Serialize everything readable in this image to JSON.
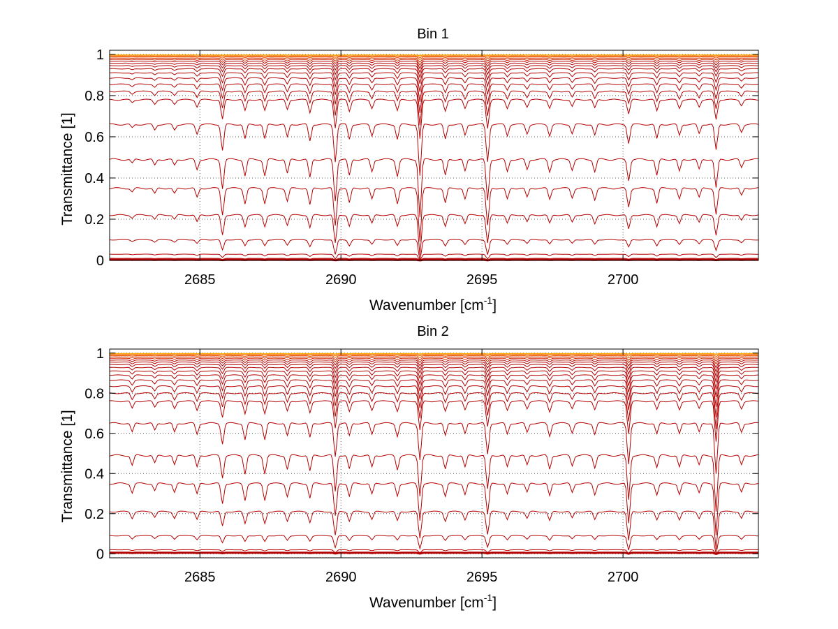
{
  "chart_data": [
    {
      "type": "line",
      "title": "Bin 1",
      "xlabel": "Wavenumber [cm",
      "xlabel_sup": "-1",
      "xlabel_end": "]",
      "ylabel": "Transmittance [1]",
      "xlim": [
        2681.8,
        2704.8
      ],
      "ylim": [
        0,
        1.02
      ],
      "grid": true,
      "xticks": [
        2685,
        2690,
        2695,
        2700
      ],
      "yticks": [
        0,
        0.2,
        0.4,
        0.6,
        0.8,
        1
      ],
      "ytick_labels": [
        "0",
        "0.2",
        "0.4",
        "0.6",
        "0.8",
        "1"
      ],
      "series_baselines": [
        0.003,
        0.01,
        0.03,
        0.1,
        0.22,
        0.35,
        0.49,
        0.66,
        0.78,
        0.82,
        0.855,
        0.885,
        0.91,
        0.93,
        0.945,
        0.957,
        0.967,
        0.975,
        0.982,
        0.988,
        0.992,
        0.996,
        0.998
      ],
      "absorption_lines": [
        {
          "x": 2682.6,
          "strength": 0.02
        },
        {
          "x": 2683.4,
          "strength": 0.03
        },
        {
          "x": 2684.1,
          "strength": 0.03
        },
        {
          "x": 2684.9,
          "strength": 0.05
        },
        {
          "x": 2685.8,
          "strength": 0.14
        },
        {
          "x": 2686.6,
          "strength": 0.08
        },
        {
          "x": 2687.3,
          "strength": 0.08
        },
        {
          "x": 2688.1,
          "strength": 0.07
        },
        {
          "x": 2688.9,
          "strength": 0.09
        },
        {
          "x": 2689.8,
          "strength": 0.2
        },
        {
          "x": 2690.3,
          "strength": 0.08
        },
        {
          "x": 2691.1,
          "strength": 0.06
        },
        {
          "x": 2692.0,
          "strength": 0.08
        },
        {
          "x": 2692.8,
          "strength": 0.28
        },
        {
          "x": 2693.7,
          "strength": 0.08
        },
        {
          "x": 2694.4,
          "strength": 0.06
        },
        {
          "x": 2695.2,
          "strength": 0.2
        },
        {
          "x": 2695.9,
          "strength": 0.06
        },
        {
          "x": 2696.6,
          "strength": 0.05
        },
        {
          "x": 2697.4,
          "strength": 0.06
        },
        {
          "x": 2698.2,
          "strength": 0.05
        },
        {
          "x": 2699.0,
          "strength": 0.06
        },
        {
          "x": 2700.2,
          "strength": 0.1
        },
        {
          "x": 2701.2,
          "strength": 0.08
        },
        {
          "x": 2702.0,
          "strength": 0.06
        },
        {
          "x": 2702.7,
          "strength": 0.05
        },
        {
          "x": 2703.3,
          "strength": 0.14
        },
        {
          "x": 2704.2,
          "strength": 0.04
        }
      ]
    },
    {
      "type": "line",
      "title": "Bin 2",
      "xlabel": "Wavenumber [cm",
      "xlabel_sup": "-1",
      "xlabel_end": "]",
      "ylabel": "Transmittance [1]",
      "xlim": [
        2681.8,
        2704.8
      ],
      "ylim": [
        -0.02,
        1.02
      ],
      "grid": true,
      "xticks": [
        2685,
        2690,
        2695,
        2700
      ],
      "yticks": [
        0,
        0.2,
        0.4,
        0.6,
        0.8,
        1
      ],
      "ytick_labels": [
        "0",
        "0.2",
        "0.4",
        "0.6",
        "0.8",
        "1"
      ],
      "series_baselines": [
        0.005,
        0.02,
        0.09,
        0.21,
        0.35,
        0.49,
        0.65,
        0.76,
        0.8,
        0.835,
        0.865,
        0.89,
        0.91,
        0.928,
        0.943,
        0.955,
        0.965,
        0.974,
        0.981,
        0.987,
        0.992,
        0.996,
        0.998
      ],
      "absorption_lines": [
        {
          "x": 2682.6,
          "strength": 0.05
        },
        {
          "x": 2683.4,
          "strength": 0.04
        },
        {
          "x": 2684.1,
          "strength": 0.05
        },
        {
          "x": 2684.9,
          "strength": 0.06
        },
        {
          "x": 2685.8,
          "strength": 0.11
        },
        {
          "x": 2686.6,
          "strength": 0.09
        },
        {
          "x": 2687.3,
          "strength": 0.09
        },
        {
          "x": 2688.1,
          "strength": 0.07
        },
        {
          "x": 2688.9,
          "strength": 0.08
        },
        {
          "x": 2689.8,
          "strength": 0.18
        },
        {
          "x": 2690.3,
          "strength": 0.07
        },
        {
          "x": 2691.1,
          "strength": 0.06
        },
        {
          "x": 2692.0,
          "strength": 0.07
        },
        {
          "x": 2692.8,
          "strength": 0.2
        },
        {
          "x": 2693.7,
          "strength": 0.07
        },
        {
          "x": 2694.4,
          "strength": 0.06
        },
        {
          "x": 2695.2,
          "strength": 0.17
        },
        {
          "x": 2695.9,
          "strength": 0.06
        },
        {
          "x": 2696.6,
          "strength": 0.05
        },
        {
          "x": 2697.4,
          "strength": 0.07
        },
        {
          "x": 2698.2,
          "strength": 0.05
        },
        {
          "x": 2699.0,
          "strength": 0.06
        },
        {
          "x": 2700.2,
          "strength": 0.22
        },
        {
          "x": 2701.2,
          "strength": 0.06
        },
        {
          "x": 2702.0,
          "strength": 0.06
        },
        {
          "x": 2702.7,
          "strength": 0.05
        },
        {
          "x": 2703.3,
          "strength": 0.28
        },
        {
          "x": 2704.2,
          "strength": 0.05
        }
      ]
    }
  ]
}
